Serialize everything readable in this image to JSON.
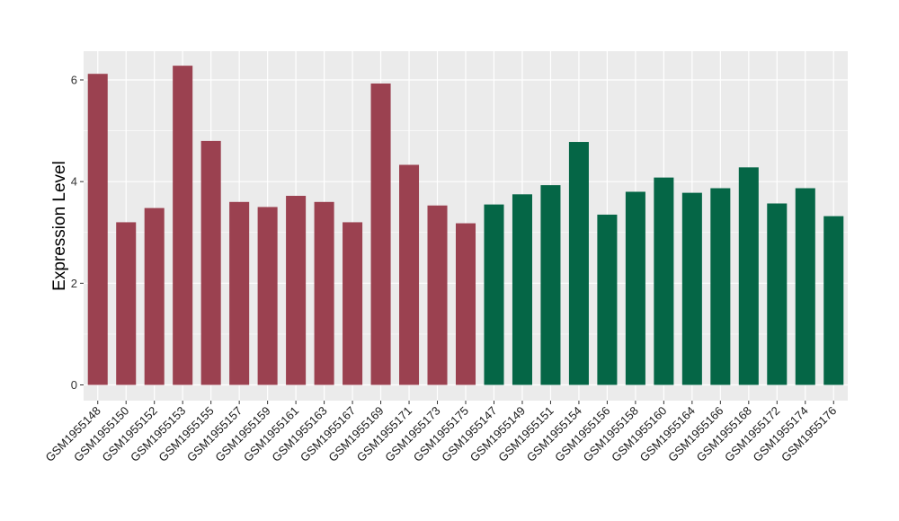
{
  "chart_data": {
    "type": "bar",
    "title": "",
    "xlabel": "",
    "ylabel": "Expression Level",
    "ylim": [
      0,
      6.6
    ],
    "yticks": [
      0,
      2,
      4,
      6
    ],
    "grid": true,
    "legend": "none",
    "colors": {
      "group1": "#9b4150",
      "group2": "#056646",
      "panel": "#ebebeb",
      "grid": "#ffffff"
    },
    "categories": [
      "GSM1955148",
      "GSM1955150",
      "GSM1955152",
      "GSM1955153",
      "GSM1955155",
      "GSM1955157",
      "GSM1955159",
      "GSM1955161",
      "GSM1955163",
      "GSM1955167",
      "GSM1955169",
      "GSM1955171",
      "GSM1955173",
      "GSM1955175",
      "GSM1955147",
      "GSM1955149",
      "GSM1955151",
      "GSM1955154",
      "GSM1955156",
      "GSM1955158",
      "GSM1955160",
      "GSM1955164",
      "GSM1955166",
      "GSM1955168",
      "GSM1955172",
      "GSM1955174",
      "GSM1955176"
    ],
    "values": [
      6.12,
      3.2,
      3.48,
      6.28,
      4.8,
      3.6,
      3.5,
      3.72,
      3.6,
      3.2,
      5.93,
      4.33,
      3.53,
      3.18,
      3.55,
      3.75,
      3.93,
      4.78,
      3.35,
      3.8,
      4.08,
      3.78,
      3.87,
      4.28,
      3.57,
      3.87,
      3.32
    ],
    "groups": [
      "group1",
      "group1",
      "group1",
      "group1",
      "group1",
      "group1",
      "group1",
      "group1",
      "group1",
      "group1",
      "group1",
      "group1",
      "group1",
      "group1",
      "group2",
      "group2",
      "group2",
      "group2",
      "group2",
      "group2",
      "group2",
      "group2",
      "group2",
      "group2",
      "group2",
      "group2",
      "group2"
    ]
  }
}
